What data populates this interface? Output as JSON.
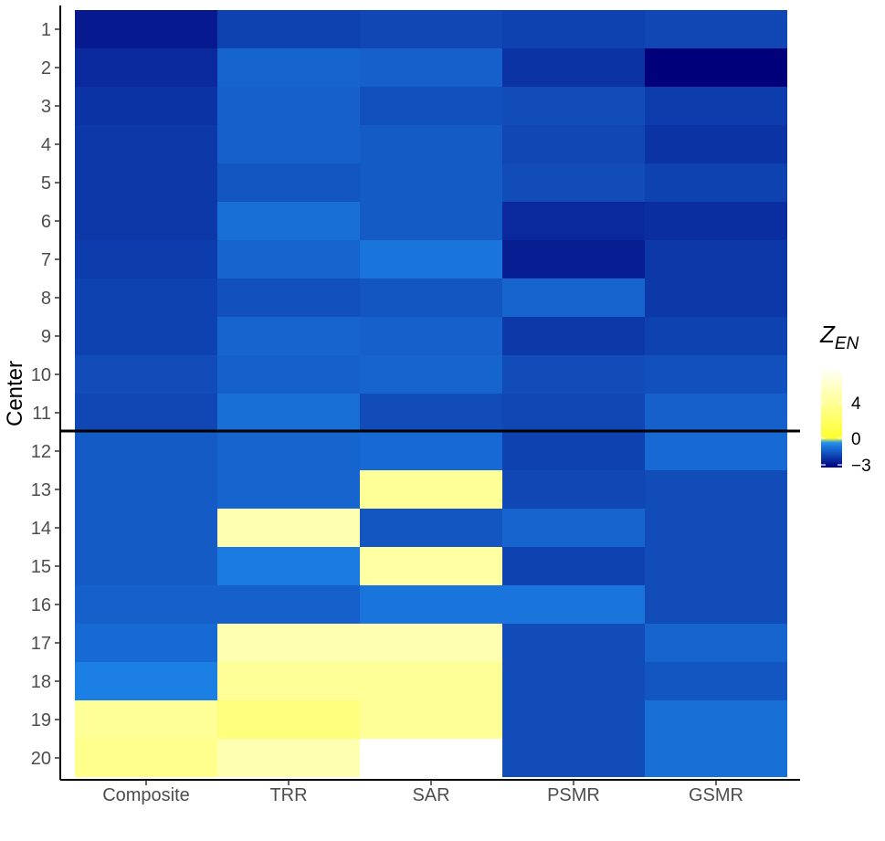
{
  "chart_data": {
    "type": "heatmap",
    "title": "",
    "xlabel": "",
    "ylabel": "Center",
    "x_categories": [
      "Composite",
      "TRR",
      "SAR",
      "PSMR",
      "GSMR"
    ],
    "y_categories": [
      "1",
      "2",
      "3",
      "4",
      "5",
      "6",
      "7",
      "8",
      "9",
      "10",
      "11",
      "12",
      "13",
      "14",
      "15",
      "16",
      "17",
      "18",
      "19",
      "20"
    ],
    "values": [
      [
        -2.8,
        -2.0,
        -1.9,
        -2.0,
        -1.9
      ],
      [
        -2.5,
        -1.3,
        -1.4,
        -2.3,
        -3.3
      ],
      [
        -2.3,
        -1.4,
        -1.7,
        -1.8,
        -2.1
      ],
      [
        -2.2,
        -1.4,
        -1.5,
        -1.9,
        -2.3
      ],
      [
        -2.2,
        -1.6,
        -1.5,
        -1.8,
        -2.0
      ],
      [
        -2.2,
        -1.1,
        -1.5,
        -2.5,
        -2.4
      ],
      [
        -2.1,
        -1.3,
        -1.0,
        -2.7,
        -2.2
      ],
      [
        -2.0,
        -1.7,
        -1.6,
        -1.3,
        -2.2
      ],
      [
        -2.0,
        -1.3,
        -1.4,
        -2.2,
        -2.0
      ],
      [
        -1.8,
        -1.4,
        -1.3,
        -1.8,
        -1.7
      ],
      [
        -1.9,
        -1.1,
        -1.8,
        -1.9,
        -1.4
      ],
      [
        -1.5,
        -1.3,
        -1.2,
        -2.0,
        -1.2
      ],
      [
        -1.5,
        -1.3,
        4.0,
        -1.9,
        -1.8
      ],
      [
        -1.5,
        5.0,
        -1.6,
        -1.3,
        -1.8
      ],
      [
        -1.5,
        -0.9,
        4.5,
        -2.0,
        -1.8
      ],
      [
        -1.4,
        -1.4,
        -1.0,
        -1.0,
        -1.8
      ],
      [
        -1.2,
        5.0,
        5.0,
        -1.8,
        -1.3
      ],
      [
        -0.8,
        4.0,
        4.0,
        -1.8,
        -1.6
      ],
      [
        4.0,
        3.0,
        4.0,
        -1.8,
        -1.1
      ],
      [
        3.5,
        5.0,
        8.0,
        -1.8,
        -1.1
      ]
    ],
    "scale": {
      "min": -3.3,
      "max": 8.0,
      "ticks": [
        -3,
        0,
        4
      ],
      "colors": {
        "low": "#00007a",
        "mid": "#1f8ef0",
        "zero": "#ffff30",
        "high": "#ffffff"
      }
    },
    "reference_line_between": [
      "11",
      "12"
    ],
    "legend": {
      "title_main": "Z",
      "title_subscript": "EN",
      "tick_labels": [
        "4",
        "0",
        "−3"
      ],
      "placement": "right"
    },
    "grid": false
  }
}
